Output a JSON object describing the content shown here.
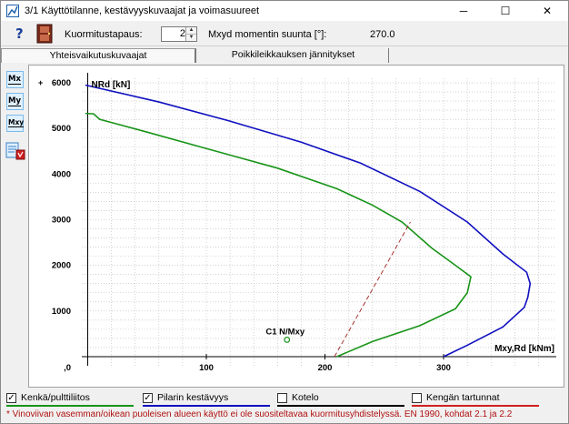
{
  "window": {
    "title": "3/1 Käyttötilanne, kestävyyskuvaajat ja voimasuureet",
    "minimize": "─",
    "maximize": "☐",
    "close": "✕"
  },
  "toolbar": {
    "help_label": "?",
    "load_case_label": "Kuormitustapaus:",
    "load_case_value": "2",
    "moment_dir_label": "Mxyd momentin suunta [°]:",
    "moment_dir_value": "270.0"
  },
  "tabs": [
    {
      "label": "Yhteisvaikutuskuvaajat",
      "active": true
    },
    {
      "label": "Poikkileikkauksen jännitykset",
      "active": false
    }
  ],
  "side_buttons": [
    {
      "label": "Mx"
    },
    {
      "label": "My"
    },
    {
      "label": "Mxy"
    }
  ],
  "chart_data": {
    "type": "line",
    "xlabel": "Mxy,Rd [kNm]",
    "ylabel": "NRd [kN]",
    "xlim": [
      -5,
      395
    ],
    "ylim": [
      -200,
      6100
    ],
    "x_ticks": [
      "100",
      "200",
      "300"
    ],
    "y_ticks": [
      "1000",
      "2000",
      "3000",
      "4000",
      "5000",
      "6000"
    ],
    "y_tick_zero": ",0",
    "grid": true,
    "series": [
      {
        "name": "Pilarin kestävyys",
        "color": "#1010c0",
        "points": [
          [
            -2,
            5950
          ],
          [
            60,
            5580
          ],
          [
            120,
            5160
          ],
          [
            180,
            4700
          ],
          [
            230,
            4240
          ],
          [
            280,
            3620
          ],
          [
            320,
            2950
          ],
          [
            350,
            2250
          ],
          [
            370,
            1850
          ],
          [
            373,
            1600
          ],
          [
            371,
            1300
          ],
          [
            368,
            1080
          ],
          [
            350,
            650
          ],
          [
            320,
            250
          ],
          [
            300,
            0
          ]
        ]
      },
      {
        "name": "Kenkä/pulttiliitos",
        "color": "#189418",
        "points": [
          [
            -2,
            5330
          ],
          [
            5,
            5320
          ],
          [
            10,
            5200
          ],
          [
            50,
            4920
          ],
          [
            100,
            4560
          ],
          [
            160,
            4130
          ],
          [
            210,
            3680
          ],
          [
            240,
            3320
          ],
          [
            265,
            2950
          ],
          [
            290,
            2380
          ],
          [
            310,
            2000
          ],
          [
            323,
            1750
          ],
          [
            320,
            1400
          ],
          [
            310,
            1050
          ],
          [
            280,
            680
          ],
          [
            240,
            330
          ],
          [
            210,
            0
          ]
        ]
      },
      {
        "name": "Vinoviiva",
        "color": "#a02020",
        "dashed": true,
        "points": [
          [
            208,
            0
          ],
          [
            272,
            2950
          ]
        ]
      }
    ],
    "annotations": [
      {
        "label": "C1 N/Mxy",
        "x": 168,
        "y": 370
      }
    ]
  },
  "legend": [
    {
      "label": "Kenkä/pulttiliitos",
      "checked": true,
      "color": "#189418"
    },
    {
      "label": "Pilarin kestävyys",
      "checked": true,
      "color": "#1010c0"
    },
    {
      "label": "Kotelo",
      "checked": false,
      "color": "#000000"
    },
    {
      "label": "Kengän tartunnat",
      "checked": false,
      "color": "#d02020"
    }
  ],
  "footnote": "* Vinoviivan vasemman/oikean puoleisen alueen käyttö ei ole suositeltavaa kuormitusyhdistelyssä. EN 1990, kohdat 2.1 ja 2.2"
}
